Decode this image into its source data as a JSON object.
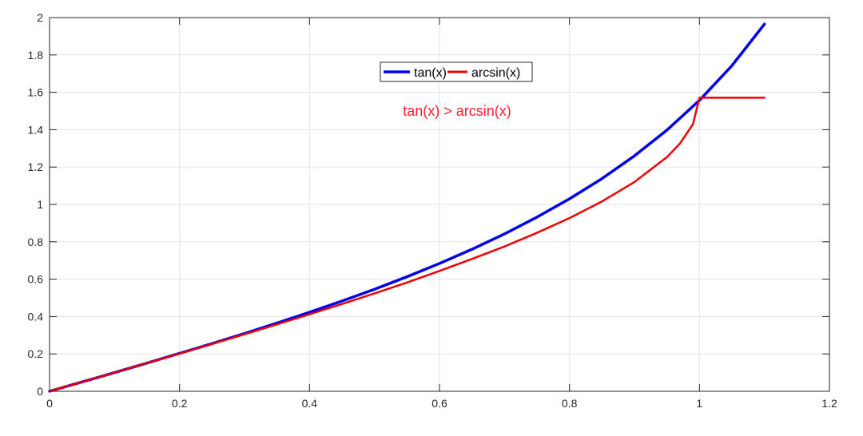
{
  "chart_data": {
    "type": "line",
    "title": "",
    "xlabel": "",
    "ylabel": "",
    "xlim": [
      0,
      1.2
    ],
    "ylim": [
      0,
      2
    ],
    "x_ticks": [
      "0",
      "0.2",
      "0.4",
      "0.6",
      "0.8",
      "1",
      "1.2"
    ],
    "y_ticks": [
      "0",
      "0.2",
      "0.4",
      "0.6",
      "0.8",
      "1",
      "1.2",
      "1.4",
      "1.6",
      "1.8",
      "2"
    ],
    "x_tick_values": [
      0,
      0.2,
      0.4,
      0.6,
      0.8,
      1.0,
      1.2
    ],
    "y_tick_values": [
      0,
      0.2,
      0.4,
      0.6,
      0.8,
      1.0,
      1.2,
      1.4,
      1.6,
      1.8,
      2.0
    ],
    "grid": true,
    "legend_position": "top-center",
    "annotation": "tan(x) > arcsin(x)",
    "annotation_color": "#ff1a33",
    "series": [
      {
        "name": "tan(x)",
        "color": "#0000ee",
        "x": [
          0,
          0.05,
          0.1,
          0.15,
          0.2,
          0.25,
          0.3,
          0.35,
          0.4,
          0.45,
          0.5,
          0.55,
          0.6,
          0.65,
          0.7,
          0.75,
          0.8,
          0.85,
          0.9,
          0.95,
          1.0,
          1.05,
          1.1
        ],
        "values": [
          0,
          0.05,
          0.1,
          0.151,
          0.203,
          0.255,
          0.309,
          0.365,
          0.423,
          0.483,
          0.546,
          0.613,
          0.684,
          0.76,
          0.842,
          0.932,
          1.03,
          1.138,
          1.26,
          1.398,
          1.557,
          1.743,
          1.965
        ]
      },
      {
        "name": "arcsin(x)",
        "color": "#ee0000",
        "x": [
          0,
          0.05,
          0.1,
          0.15,
          0.2,
          0.25,
          0.3,
          0.35,
          0.4,
          0.45,
          0.5,
          0.55,
          0.6,
          0.65,
          0.7,
          0.75,
          0.8,
          0.85,
          0.9,
          0.95,
          0.97,
          0.99,
          1.0,
          1.05,
          1.1
        ],
        "values": [
          0,
          0.05,
          0.1,
          0.151,
          0.201,
          0.253,
          0.305,
          0.358,
          0.412,
          0.467,
          0.524,
          0.582,
          0.644,
          0.708,
          0.775,
          0.848,
          0.927,
          1.016,
          1.12,
          1.253,
          1.326,
          1.429,
          1.571,
          1.571,
          1.571
        ]
      }
    ]
  }
}
